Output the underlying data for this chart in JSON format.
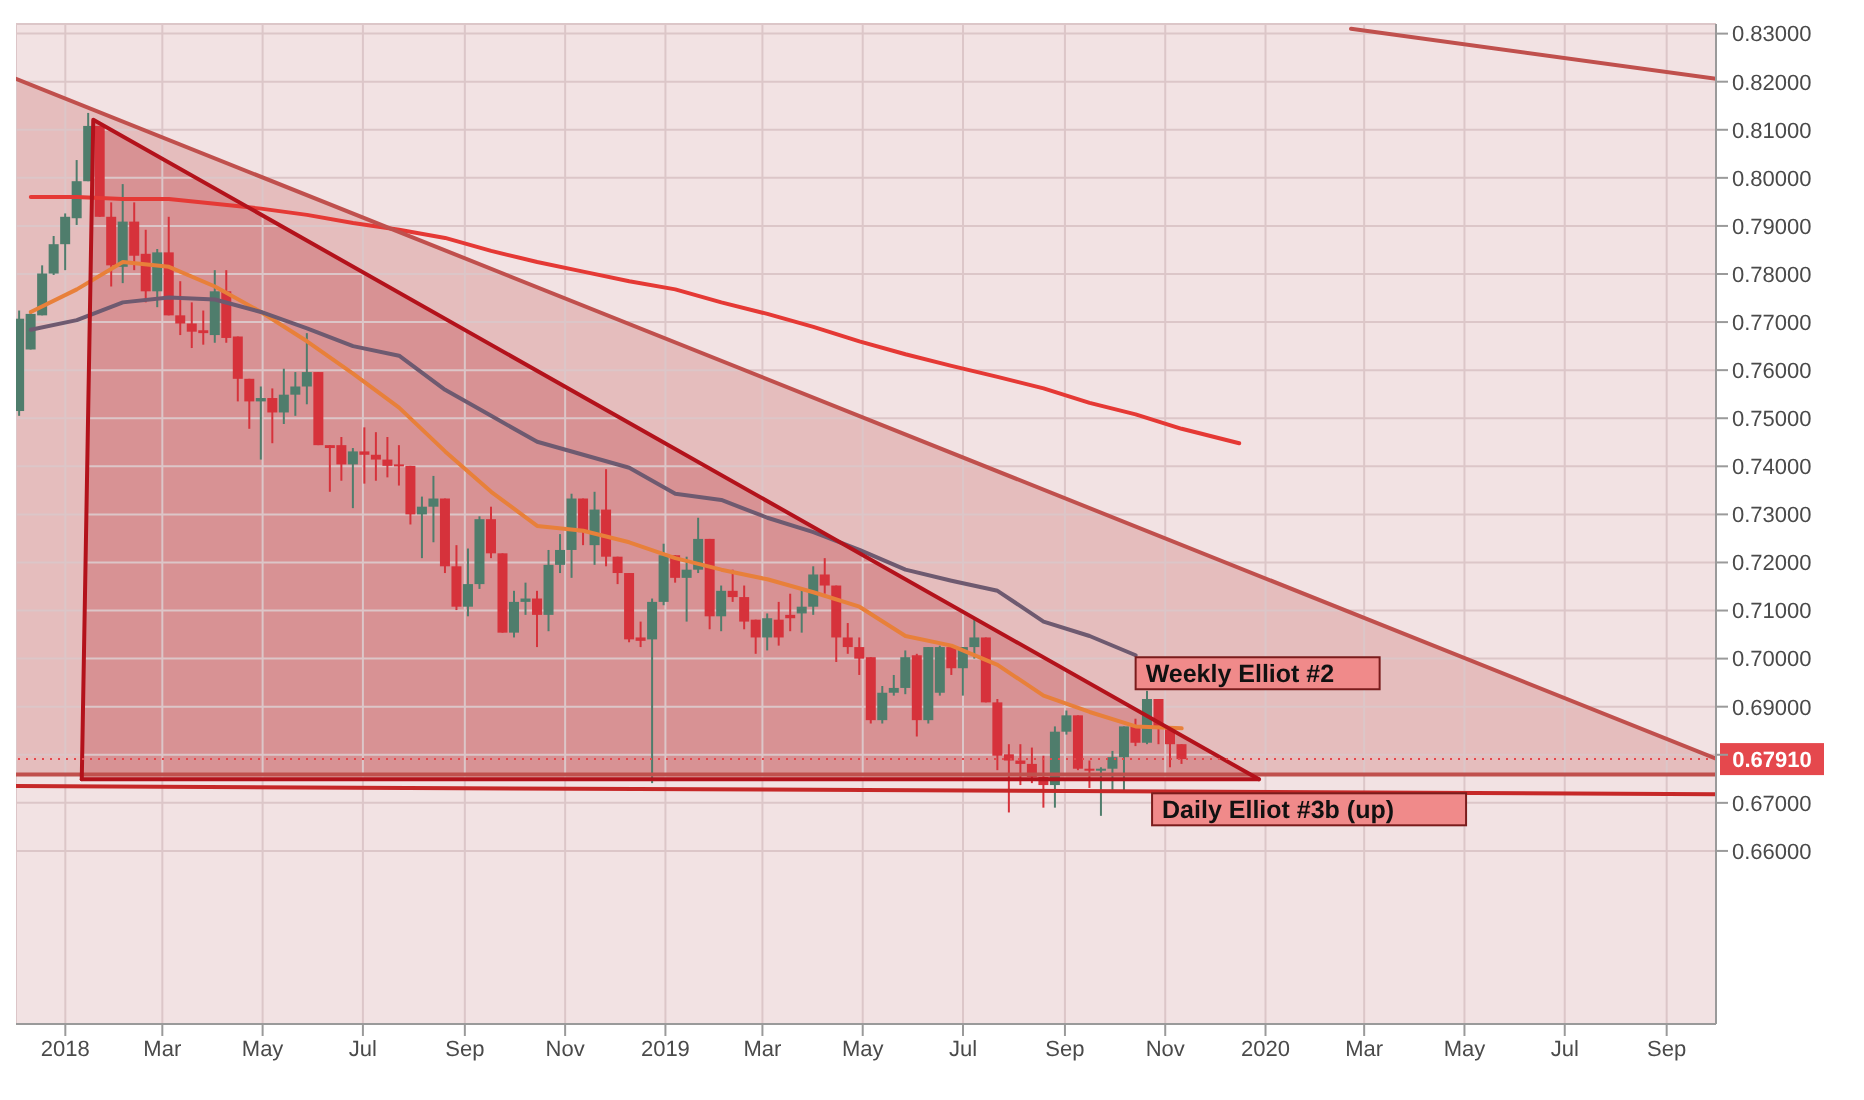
{
  "chart_data": {
    "type": "candlestick",
    "x": [
      "2017-12-04",
      "2017-12-11",
      "2017-12-18",
      "2017-12-25",
      "2018-01-01",
      "2018-01-08",
      "2018-01-15",
      "2018-01-22",
      "2018-01-29",
      "2018-02-05",
      "2018-02-12",
      "2018-02-19",
      "2018-02-26",
      "2018-03-05",
      "2018-03-12",
      "2018-03-19",
      "2018-03-26",
      "2018-04-02",
      "2018-04-09",
      "2018-04-16",
      "2018-04-23",
      "2018-04-30",
      "2018-05-07",
      "2018-05-14",
      "2018-05-21",
      "2018-05-28",
      "2018-06-04",
      "2018-06-11",
      "2018-06-18",
      "2018-06-25",
      "2018-07-02",
      "2018-07-09",
      "2018-07-16",
      "2018-07-23",
      "2018-07-30",
      "2018-08-06",
      "2018-08-13",
      "2018-08-20",
      "2018-08-27",
      "2018-09-03",
      "2018-09-10",
      "2018-09-17",
      "2018-09-24",
      "2018-10-01",
      "2018-10-08",
      "2018-10-15",
      "2018-10-22",
      "2018-10-29",
      "2018-11-05",
      "2018-11-12",
      "2018-11-19",
      "2018-11-26",
      "2018-12-03",
      "2018-12-10",
      "2018-12-17",
      "2018-12-24",
      "2018-12-31",
      "2019-01-07",
      "2019-01-14",
      "2019-01-21",
      "2019-01-28",
      "2019-02-04",
      "2019-02-11",
      "2019-02-18",
      "2019-02-25",
      "2019-03-04",
      "2019-03-11",
      "2019-03-18",
      "2019-03-25",
      "2019-04-01",
      "2019-04-08",
      "2019-04-15",
      "2019-04-22",
      "2019-04-29",
      "2019-05-06",
      "2019-05-13",
      "2019-05-20",
      "2019-05-27",
      "2019-06-03",
      "2019-06-10",
      "2019-06-17",
      "2019-06-24",
      "2019-07-01",
      "2019-07-08",
      "2019-07-15",
      "2019-07-22",
      "2019-07-29",
      "2019-08-05",
      "2019-08-12",
      "2019-08-19",
      "2019-08-26",
      "2019-09-02",
      "2019-09-09",
      "2019-09-16",
      "2019-09-23",
      "2019-09-30",
      "2019-10-07",
      "2019-10-14",
      "2019-10-21",
      "2019-10-28",
      "2019-11-04",
      "2019-11-11"
    ],
    "ohlc": [
      [
        0.7515,
        0.7724,
        0.7505,
        0.7707
      ],
      [
        0.7643,
        0.7724,
        0.7643,
        0.7717
      ],
      [
        0.7714,
        0.7818,
        0.7714,
        0.7801
      ],
      [
        0.7801,
        0.7879,
        0.7798,
        0.7862
      ],
      [
        0.7862,
        0.7926,
        0.7808,
        0.7919
      ],
      [
        0.7916,
        0.8037,
        0.7902,
        0.7993
      ],
      [
        0.7993,
        0.8135,
        0.7993,
        0.8108
      ],
      [
        0.8108,
        0.8108,
        0.7919,
        0.7919
      ],
      [
        0.7919,
        0.7949,
        0.7774,
        0.7818
      ],
      [
        0.7815,
        0.7987,
        0.7781,
        0.7909
      ],
      [
        0.7909,
        0.7949,
        0.7808,
        0.7838
      ],
      [
        0.7842,
        0.7892,
        0.7741,
        0.7764
      ],
      [
        0.7764,
        0.7852,
        0.7731,
        0.7845
      ],
      [
        0.7845,
        0.7919,
        0.7714,
        0.7714
      ],
      [
        0.7714,
        0.7785,
        0.7673,
        0.7697
      ],
      [
        0.7697,
        0.7741,
        0.7646,
        0.768
      ],
      [
        0.7683,
        0.7724,
        0.7653,
        0.7677
      ],
      [
        0.7673,
        0.7808,
        0.7657,
        0.7764
      ],
      [
        0.7764,
        0.7808,
        0.7657,
        0.7667
      ],
      [
        0.767,
        0.767,
        0.7535,
        0.7582
      ],
      [
        0.7582,
        0.7582,
        0.7478,
        0.7535
      ],
      [
        0.7535,
        0.7566,
        0.7414,
        0.7542
      ],
      [
        0.7542,
        0.7562,
        0.7448,
        0.7512
      ],
      [
        0.7512,
        0.7603,
        0.7488,
        0.7549
      ],
      [
        0.7549,
        0.7596,
        0.7505,
        0.7566
      ],
      [
        0.7566,
        0.7677,
        0.7529,
        0.7596
      ],
      [
        0.7596,
        0.7596,
        0.7444,
        0.7444
      ],
      [
        0.7444,
        0.7444,
        0.7347,
        0.7438
      ],
      [
        0.7444,
        0.7461,
        0.737,
        0.7404
      ],
      [
        0.7404,
        0.7438,
        0.7313,
        0.7431
      ],
      [
        0.7431,
        0.7481,
        0.7364,
        0.7424
      ],
      [
        0.7424,
        0.7471,
        0.737,
        0.7414
      ],
      [
        0.7414,
        0.7461,
        0.7377,
        0.7401
      ],
      [
        0.7404,
        0.7444,
        0.736,
        0.7401
      ],
      [
        0.7401,
        0.7401,
        0.7279,
        0.73
      ],
      [
        0.73,
        0.7337,
        0.7209,
        0.7316
      ],
      [
        0.7316,
        0.738,
        0.7242,
        0.7333
      ],
      [
        0.7333,
        0.7333,
        0.7178,
        0.7192
      ],
      [
        0.7192,
        0.7236,
        0.7101,
        0.7108
      ],
      [
        0.7108,
        0.7229,
        0.7088,
        0.7155
      ],
      [
        0.7155,
        0.7296,
        0.7145,
        0.729
      ],
      [
        0.729,
        0.7316,
        0.7209,
        0.7219
      ],
      [
        0.7219,
        0.7219,
        0.7054,
        0.7054
      ],
      [
        0.7054,
        0.7141,
        0.7044,
        0.7118
      ],
      [
        0.7118,
        0.7158,
        0.7091,
        0.7125
      ],
      [
        0.7125,
        0.7141,
        0.7024,
        0.7091
      ],
      [
        0.7091,
        0.7226,
        0.7057,
        0.7195
      ],
      [
        0.7195,
        0.7259,
        0.7178,
        0.7226
      ],
      [
        0.7226,
        0.7343,
        0.7168,
        0.7333
      ],
      [
        0.7333,
        0.7333,
        0.7236,
        0.7263
      ],
      [
        0.7236,
        0.7347,
        0.7195,
        0.731
      ],
      [
        0.731,
        0.7394,
        0.7192,
        0.7212
      ],
      [
        0.7212,
        0.7212,
        0.7155,
        0.7178
      ],
      [
        0.7178,
        0.7178,
        0.7034,
        0.704
      ],
      [
        0.7044,
        0.7077,
        0.7024,
        0.7037
      ],
      [
        0.704,
        0.7125,
        0.6741,
        0.7118
      ],
      [
        0.7118,
        0.7239,
        0.7111,
        0.7215
      ],
      [
        0.7215,
        0.7215,
        0.7158,
        0.7168
      ],
      [
        0.7168,
        0.7212,
        0.7077,
        0.7185
      ],
      [
        0.7185,
        0.7293,
        0.7178,
        0.7249
      ],
      [
        0.7249,
        0.7249,
        0.7061,
        0.7088
      ],
      [
        0.7088,
        0.7152,
        0.7057,
        0.7141
      ],
      [
        0.7141,
        0.7185,
        0.7118,
        0.7128
      ],
      [
        0.7128,
        0.7152,
        0.7061,
        0.7077
      ],
      [
        0.7081,
        0.7081,
        0.701,
        0.7044
      ],
      [
        0.7044,
        0.7094,
        0.7017,
        0.7084
      ],
      [
        0.7081,
        0.7118,
        0.7027,
        0.7044
      ],
      [
        0.7091,
        0.7135,
        0.7057,
        0.7084
      ],
      [
        0.7094,
        0.7145,
        0.7054,
        0.7108
      ],
      [
        0.7108,
        0.7192,
        0.7091,
        0.7175
      ],
      [
        0.7175,
        0.7209,
        0.7135,
        0.7152
      ],
      [
        0.7152,
        0.7152,
        0.6993,
        0.7044
      ],
      [
        0.7044,
        0.7074,
        0.701,
        0.7024
      ],
      [
        0.7024,
        0.7044,
        0.6966,
        0.7
      ],
      [
        0.7003,
        0.7003,
        0.6865,
        0.6872
      ],
      [
        0.6872,
        0.6943,
        0.6865,
        0.6929
      ],
      [
        0.6929,
        0.6966,
        0.6923,
        0.6939
      ],
      [
        0.6939,
        0.7017,
        0.6926,
        0.7003
      ],
      [
        0.7007,
        0.701,
        0.6838,
        0.6872
      ],
      [
        0.6872,
        0.7024,
        0.6865,
        0.7024
      ],
      [
        0.6929,
        0.7027,
        0.6923,
        0.7024
      ],
      [
        0.7024,
        0.7027,
        0.6966,
        0.698
      ],
      [
        0.698,
        0.7024,
        0.6923,
        0.7024
      ],
      [
        0.7024,
        0.7084,
        0.7,
        0.7044
      ],
      [
        0.7044,
        0.7044,
        0.6909,
        0.6909
      ],
      [
        0.6909,
        0.6916,
        0.6768,
        0.6798
      ],
      [
        0.6801,
        0.6822,
        0.668,
        0.6788
      ],
      [
        0.6788,
        0.6822,
        0.6737,
        0.6781
      ],
      [
        0.6781,
        0.6815,
        0.6741,
        0.6754
      ],
      [
        0.6754,
        0.6798,
        0.669,
        0.6737
      ],
      [
        0.6737,
        0.6859,
        0.669,
        0.6848
      ],
      [
        0.6848,
        0.6892,
        0.6842,
        0.6882
      ],
      [
        0.6882,
        0.6882,
        0.6768,
        0.6771
      ],
      [
        0.6771,
        0.6788,
        0.6731,
        0.6768
      ],
      [
        0.6768,
        0.6774,
        0.6673,
        0.6771
      ],
      [
        0.6771,
        0.6808,
        0.6724,
        0.6795
      ],
      [
        0.6795,
        0.6859,
        0.6721,
        0.6859
      ],
      [
        0.6859,
        0.6875,
        0.6818,
        0.6825
      ],
      [
        0.6825,
        0.6933,
        0.6822,
        0.6916
      ],
      [
        0.6916,
        0.6916,
        0.6822,
        0.6859
      ],
      [
        0.6859,
        0.6859,
        0.6774,
        0.6822
      ],
      [
        0.6822,
        0.6822,
        0.6781,
        0.6791
      ]
    ],
    "colors": [
      "#4f7d6c",
      "#4f7d6c",
      "#4f7d6c",
      "#4f7d6c",
      "#4f7d6c",
      "#4f7d6c",
      "#4f7d6c",
      "#d6323b",
      "#d6323b",
      "#4f7d6c",
      "#d6323b",
      "#d6323b",
      "#4f7d6c",
      "#d6323b",
      "#d6323b",
      "#d6323b",
      "#d6323b",
      "#4f7d6c",
      "#d6323b",
      "#d6323b",
      "#d6323b",
      "#4f7d6c",
      "#d6323b",
      "#4f7d6c",
      "#4f7d6c",
      "#4f7d6c",
      "#d6323b",
      "#d6323b",
      "#d6323b",
      "#4f7d6c",
      "#d6323b",
      "#d6323b",
      "#d6323b",
      "#d6323b",
      "#d6323b",
      "#4f7d6c",
      "#4f7d6c",
      "#d6323b",
      "#d6323b",
      "#4f7d6c",
      "#4f7d6c",
      "#d6323b",
      "#d6323b",
      "#4f7d6c",
      "#4f7d6c",
      "#d6323b",
      "#4f7d6c",
      "#4f7d6c",
      "#4f7d6c",
      "#d6323b",
      "#4f7d6c",
      "#d6323b",
      "#d6323b",
      "#d6323b",
      "#d6323b",
      "#4f7d6c",
      "#4f7d6c",
      "#d6323b",
      "#4f7d6c",
      "#4f7d6c",
      "#d6323b",
      "#4f7d6c",
      "#d6323b",
      "#d6323b",
      "#d6323b",
      "#4f7d6c",
      "#d6323b",
      "#d6323b",
      "#4f7d6c",
      "#4f7d6c",
      "#d6323b",
      "#d6323b",
      "#d6323b",
      "#d6323b",
      "#d6323b",
      "#4f7d6c",
      "#4f7d6c",
      "#4f7d6c",
      "#d6323b",
      "#4f7d6c",
      "#4f7d6c",
      "#d6323b",
      "#4f7d6c",
      "#4f7d6c",
      "#d6323b",
      "#d6323b",
      "#d6323b",
      "#d6323b",
      "#d6323b",
      "#d6323b",
      "#4f7d6c",
      "#4f7d6c",
      "#d6323b",
      "#d6323b",
      "#4f7d6c",
      "#4f7d6c",
      "#4f7d6c",
      "#d6323b",
      "#4f7d6c",
      "#d6323b",
      "#d6323b",
      "#d6323b"
    ],
    "series": [
      {
        "type": "line",
        "color": "#e8803a",
        "x": [
          "2017-12-11",
          "2018-01-08",
          "2018-02-05",
          "2018-03-05",
          "2018-04-02",
          "2018-04-30",
          "2018-05-28",
          "2018-06-25",
          "2018-07-23",
          "2018-08-20",
          "2018-09-17",
          "2018-10-15",
          "2018-11-12",
          "2018-12-10",
          "2019-01-07",
          "2019-02-04",
          "2019-03-04",
          "2019-04-01",
          "2019-04-29",
          "2019-05-27",
          "2019-06-24",
          "2019-07-22",
          "2019-08-19",
          "2019-09-16",
          "2019-10-14",
          "2019-11-11"
        ],
        "values": [
          0.7721,
          0.7768,
          0.7825,
          0.7815,
          0.7774,
          0.7721,
          0.766,
          0.7593,
          0.7522,
          0.7431,
          0.7347,
          0.7276,
          0.7266,
          0.7242,
          0.7209,
          0.7185,
          0.7165,
          0.7138,
          0.7108,
          0.7047,
          0.7027,
          0.6987,
          0.6923,
          0.6889,
          0.6859,
          0.6855
        ]
      },
      {
        "type": "line",
        "color": "#6e5a70",
        "x": [
          "2017-12-11",
          "2018-01-08",
          "2018-02-05",
          "2018-03-05",
          "2018-04-02",
          "2018-04-30",
          "2018-05-28",
          "2018-06-25",
          "2018-07-23",
          "2018-08-20",
          "2018-09-17",
          "2018-10-15",
          "2018-11-12",
          "2018-12-10",
          "2019-01-07",
          "2019-02-04",
          "2019-03-04",
          "2019-04-01",
          "2019-04-29",
          "2019-05-27",
          "2019-06-24",
          "2019-07-22",
          "2019-08-19",
          "2019-09-16",
          "2019-10-14"
        ],
        "values": [
          0.7684,
          0.7704,
          0.7741,
          0.7751,
          0.7747,
          0.7721,
          0.7687,
          0.765,
          0.763,
          0.7559,
          0.7505,
          0.7451,
          0.7424,
          0.7397,
          0.7343,
          0.733,
          0.7293,
          0.7263,
          0.7226,
          0.7185,
          0.7162,
          0.7141,
          0.7077,
          0.7047,
          0.7007
        ]
      },
      {
        "type": "line",
        "color": "#e53935",
        "x": [
          "2017-12-11",
          "2018-01-08",
          "2018-02-05",
          "2018-03-05",
          "2018-04-02",
          "2018-04-30",
          "2018-05-28",
          "2018-06-25",
          "2018-07-23",
          "2018-08-20",
          "2018-09-17",
          "2018-10-15",
          "2018-11-12",
          "2018-12-10",
          "2019-01-07",
          "2019-02-04",
          "2019-03-04",
          "2019-04-01",
          "2019-04-29",
          "2019-05-27",
          "2019-06-24",
          "2019-07-22",
          "2019-08-19",
          "2019-09-16",
          "2019-10-14",
          "2019-11-11",
          "2019-12-16"
        ],
        "values": [
          0.796,
          0.796,
          0.7956,
          0.7956,
          0.7946,
          0.7936,
          0.7923,
          0.7906,
          0.7892,
          0.7875,
          0.7848,
          0.7825,
          0.7805,
          0.7785,
          0.7768,
          0.7741,
          0.7717,
          0.769,
          0.766,
          0.7633,
          0.7609,
          0.7586,
          0.7562,
          0.7532,
          0.7508,
          0.7478,
          0.7448
        ]
      },
      {
        "type": "line",
        "color": "#c0504d",
        "x": [
          "2017-12-02",
          "2020-10-01"
        ],
        "values": [
          0.8206,
          0.6792
        ]
      },
      {
        "type": "line",
        "color": "#c0504d",
        "x": [
          "2017-12-02",
          "2020-10-01"
        ],
        "values": [
          0.6759,
          0.6759
        ]
      },
      {
        "type": "line",
        "color": "#b3121b",
        "x": [
          "2018-01-11",
          "2018-01-18",
          "2019-12-28"
        ],
        "values": [
          0.6749,
          0.8121,
          0.6749
        ]
      },
      {
        "type": "line",
        "color": "#b3121b",
        "x": [
          "2018-01-11",
          "2019-12-28"
        ],
        "values": [
          0.6749,
          0.6749
        ]
      },
      {
        "type": "line",
        "color": "#c62828",
        "x": [
          "2017-12-02",
          "2020-10-01"
        ],
        "values": [
          0.6735,
          0.6718
        ]
      },
      {
        "type": "line",
        "color": "#c0504d",
        "x": [
          "2020-02-22",
          "2020-10-01"
        ],
        "values": [
          0.831,
          0.8206
        ]
      }
    ],
    "xlim": [
      "2017-12-02",
      "2020-10-01"
    ],
    "xticks": [
      {
        "value": "2018-01-01",
        "label": "2018"
      },
      {
        "value": "2018-03-01",
        "label": "Mar"
      },
      {
        "value": "2018-05-01",
        "label": "May"
      },
      {
        "value": "2018-07-01",
        "label": "Jul"
      },
      {
        "value": "2018-09-01",
        "label": "Sep"
      },
      {
        "value": "2018-11-01",
        "label": "Nov"
      },
      {
        "value": "2019-01-01",
        "label": "2019"
      },
      {
        "value": "2019-03-01",
        "label": "Mar"
      },
      {
        "value": "2019-05-01",
        "label": "May"
      },
      {
        "value": "2019-07-01",
        "label": "Jul"
      },
      {
        "value": "2019-09-01",
        "label": "Sep"
      },
      {
        "value": "2019-11-01",
        "label": "Nov"
      },
      {
        "value": "2020-01-01",
        "label": "2020"
      },
      {
        "value": "2020-03-01",
        "label": "Mar"
      },
      {
        "value": "2020-05-01",
        "label": "May"
      },
      {
        "value": "2020-07-01",
        "label": "Jul"
      },
      {
        "value": "2020-09-01",
        "label": "Sep"
      }
    ],
    "ylim": [
      0.624,
      0.832
    ],
    "yticks": [
      {
        "value": 0.66,
        "label": "0.66000"
      },
      {
        "value": 0.67,
        "label": "0.67000"
      },
      {
        "value": 0.68,
        "label": null
      },
      {
        "value": 0.69,
        "label": "0.69000"
      },
      {
        "value": 0.7,
        "label": "0.70000"
      },
      {
        "value": 0.71,
        "label": "0.71000"
      },
      {
        "value": 0.72,
        "label": "0.72000"
      },
      {
        "value": 0.73,
        "label": "0.73000"
      },
      {
        "value": 0.74,
        "label": "0.74000"
      },
      {
        "value": 0.75,
        "label": "0.75000"
      },
      {
        "value": 0.76,
        "label": "0.76000"
      },
      {
        "value": 0.77,
        "label": "0.77000"
      },
      {
        "value": 0.78,
        "label": "0.78000"
      },
      {
        "value": 0.79,
        "label": "0.79000"
      },
      {
        "value": 0.8,
        "label": "0.80000"
      },
      {
        "value": 0.81,
        "label": "0.81000"
      },
      {
        "value": 0.82,
        "label": "0.82000"
      },
      {
        "value": 0.83,
        "label": "0.83000"
      }
    ],
    "ref_lines": [
      {
        "axis": "y",
        "value": 0.6791,
        "label": "0.67910",
        "color": "#e5484d",
        "line_style": "dotted"
      }
    ],
    "annotations": [
      {
        "text": "Weekly Elliot #2",
        "x": "2019-10-14",
        "y": 0.7007
      },
      {
        "text": "Daily Elliot #3b (up)",
        "x": "2019-10-24",
        "y": 0.6724
      }
    ],
    "grid": true
  }
}
